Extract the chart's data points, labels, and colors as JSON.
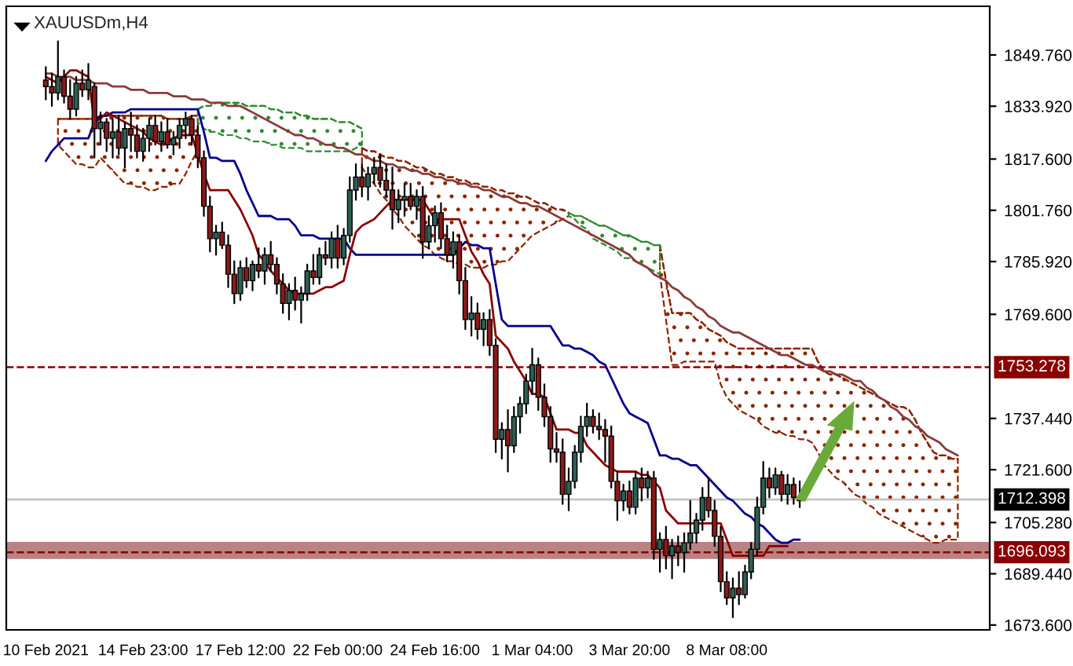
{
  "chart_data": {
    "type": "candlestick",
    "title": "XAUUSDm,H4",
    "categories": [
      "10 Feb 2021",
      null,
      null,
      null,
      null,
      null,
      null,
      null,
      null,
      null,
      null,
      null,
      null,
      null,
      null,
      null,
      "14 Feb 23:00",
      null,
      null,
      null,
      null,
      null,
      null,
      null,
      null,
      null,
      null,
      null,
      null,
      null,
      null,
      null,
      "17 Feb 12:00",
      null,
      null,
      null,
      null,
      null,
      null,
      null,
      null,
      null,
      null,
      null,
      null,
      null,
      null,
      null,
      "22 Feb 00:00",
      null,
      null,
      null,
      null,
      null,
      null,
      null,
      null,
      null,
      null,
      null,
      null,
      null,
      null,
      null,
      "24 Feb 16:00",
      null,
      null,
      null,
      null,
      null,
      null,
      null,
      null,
      null,
      null,
      null,
      null,
      null,
      null,
      null,
      "1 Mar 04:00",
      null,
      null,
      null,
      null,
      null,
      null,
      null,
      null,
      null,
      null,
      null,
      null,
      null,
      null,
      null,
      "3 Mar 20:00",
      null,
      null,
      null,
      null,
      null,
      null,
      null,
      null,
      null,
      null,
      null,
      null,
      null,
      null,
      null,
      "8 Mar 08:00",
      null,
      null,
      null,
      null,
      null,
      null,
      null,
      null,
      null,
      null,
      null,
      null,
      null,
      null,
      null,
      null,
      null,
      null,
      null,
      null,
      null,
      null,
      null,
      null,
      null,
      null,
      null,
      null,
      null,
      null,
      null,
      null,
      null,
      null,
      null,
      null,
      null,
      null
    ],
    "ohlc": [
      [
        1842,
        1846,
        1836,
        1840
      ],
      [
        1840,
        1844,
        1834,
        1838
      ],
      [
        1838,
        1854,
        1836,
        1843
      ],
      [
        1843,
        1845,
        1835,
        1837
      ],
      [
        1837,
        1842,
        1830,
        1833
      ],
      [
        1833,
        1843,
        1831,
        1841
      ],
      [
        1841,
        1845,
        1837,
        1839
      ],
      [
        1839,
        1847,
        1836,
        1842
      ],
      [
        1840,
        1841,
        1818,
        1827
      ],
      [
        1827,
        1832,
        1822,
        1829
      ],
      [
        1829,
        1830,
        1820,
        1824
      ],
      [
        1824,
        1830,
        1818,
        1826
      ],
      [
        1826,
        1831,
        1819,
        1821
      ],
      [
        1821,
        1829,
        1815,
        1827
      ],
      [
        1827,
        1832,
        1820,
        1825
      ],
      [
        1825,
        1828,
        1818,
        1820
      ],
      [
        1820,
        1827,
        1817,
        1824
      ],
      [
        1824,
        1830,
        1820,
        1828
      ],
      [
        1828,
        1831,
        1822,
        1823
      ],
      [
        1823,
        1829,
        1820,
        1826
      ],
      [
        1826,
        1830,
        1821,
        1822
      ],
      [
        1822,
        1826,
        1819,
        1824
      ],
      [
        1824,
        1830,
        1821,
        1828
      ],
      [
        1828,
        1832,
        1824,
        1830
      ],
      [
        1830,
        1831,
        1822,
        1825
      ],
      [
        1825,
        1828,
        1815,
        1818
      ],
      [
        1818,
        1820,
        1800,
        1803
      ],
      [
        1803,
        1806,
        1789,
        1793
      ],
      [
        1793,
        1797,
        1788,
        1795
      ],
      [
        1795,
        1798,
        1790,
        1791
      ],
      [
        1791,
        1794,
        1778,
        1782
      ],
      [
        1782,
        1786,
        1773,
        1776
      ],
      [
        1776,
        1786,
        1774,
        1784
      ],
      [
        1784,
        1787,
        1778,
        1780
      ],
      [
        1780,
        1786,
        1777,
        1785
      ],
      [
        1785,
        1790,
        1781,
        1783
      ],
      [
        1783,
        1790,
        1779,
        1788
      ],
      [
        1788,
        1792,
        1783,
        1785
      ],
      [
        1785,
        1787,
        1776,
        1779
      ],
      [
        1779,
        1782,
        1770,
        1773
      ],
      [
        1773,
        1779,
        1768,
        1777
      ],
      [
        1777,
        1781,
        1771,
        1774
      ],
      [
        1774,
        1778,
        1767,
        1776
      ],
      [
        1776,
        1785,
        1774,
        1783
      ],
      [
        1783,
        1788,
        1779,
        1781
      ],
      [
        1781,
        1790,
        1779,
        1788
      ],
      [
        1788,
        1792,
        1785,
        1787
      ],
      [
        1787,
        1795,
        1784,
        1793
      ],
      [
        1793,
        1797,
        1784,
        1787
      ],
      [
        1787,
        1796,
        1785,
        1794
      ],
      [
        1794,
        1812,
        1792,
        1808
      ],
      [
        1808,
        1816,
        1805,
        1812
      ],
      [
        1812,
        1816,
        1806,
        1809
      ],
      [
        1809,
        1815,
        1805,
        1813
      ],
      [
        1813,
        1818,
        1810,
        1815
      ],
      [
        1815,
        1819,
        1809,
        1811
      ],
      [
        1811,
        1816,
        1806,
        1808
      ],
      [
        1808,
        1815,
        1796,
        1802
      ],
      [
        1802,
        1808,
        1798,
        1805
      ],
      [
        1805,
        1810,
        1800,
        1806
      ],
      [
        1806,
        1810,
        1802,
        1803
      ],
      [
        1803,
        1808,
        1799,
        1806
      ],
      [
        1806,
        1809,
        1787,
        1792
      ],
      [
        1792,
        1800,
        1790,
        1797
      ],
      [
        1797,
        1803,
        1792,
        1801
      ],
      [
        1801,
        1804,
        1790,
        1793
      ],
      [
        1793,
        1797,
        1786,
        1788
      ],
      [
        1788,
        1795,
        1784,
        1792
      ],
      [
        1792,
        1794,
        1776,
        1780
      ],
      [
        1780,
        1784,
        1765,
        1768
      ],
      [
        1768,
        1775,
        1763,
        1770
      ],
      [
        1770,
        1773,
        1762,
        1765
      ],
      [
        1765,
        1770,
        1760,
        1768
      ],
      [
        1768,
        1771,
        1757,
        1760
      ],
      [
        1760,
        1762,
        1727,
        1731
      ],
      [
        1731,
        1736,
        1725,
        1734
      ],
      [
        1734,
        1740,
        1721,
        1729
      ],
      [
        1729,
        1741,
        1727,
        1738
      ],
      [
        1738,
        1744,
        1733,
        1742
      ],
      [
        1742,
        1751,
        1739,
        1749
      ],
      [
        1749,
        1759,
        1745,
        1754
      ],
      [
        1754,
        1756,
        1740,
        1744
      ],
      [
        1744,
        1748,
        1735,
        1738
      ],
      [
        1738,
        1741,
        1724,
        1728
      ],
      [
        1728,
        1733,
        1724,
        1727
      ],
      [
        1727,
        1731,
        1711,
        1714
      ],
      [
        1714,
        1722,
        1709,
        1718
      ],
      [
        1718,
        1729,
        1716,
        1727
      ],
      [
        1727,
        1738,
        1724,
        1735
      ],
      [
        1735,
        1742,
        1732,
        1738
      ],
      [
        1738,
        1740,
        1733,
        1735
      ],
      [
        1735,
        1739,
        1731,
        1734
      ],
      [
        1734,
        1737,
        1724,
        1732
      ],
      [
        1732,
        1735,
        1716,
        1718
      ],
      [
        1718,
        1721,
        1706,
        1712
      ],
      [
        1712,
        1717,
        1709,
        1715
      ],
      [
        1715,
        1718,
        1708,
        1710
      ],
      [
        1710,
        1721,
        1708,
        1719
      ],
      [
        1719,
        1722,
        1712,
        1716
      ],
      [
        1716,
        1721,
        1713,
        1719
      ],
      [
        1719,
        1721,
        1694,
        1697
      ],
      [
        1697,
        1702,
        1690,
        1700
      ],
      [
        1700,
        1704,
        1691,
        1695
      ],
      [
        1695,
        1700,
        1688,
        1698
      ],
      [
        1698,
        1701,
        1692,
        1696
      ],
      [
        1696,
        1702,
        1690,
        1699
      ],
      [
        1699,
        1712,
        1697,
        1702
      ],
      [
        1702,
        1708,
        1699,
        1706
      ],
      [
        1706,
        1716,
        1703,
        1713
      ],
      [
        1713,
        1719,
        1707,
        1709
      ],
      [
        1709,
        1712,
        1698,
        1701
      ],
      [
        1701,
        1704,
        1684,
        1687
      ],
      [
        1687,
        1690,
        1680,
        1682
      ],
      [
        1682,
        1688,
        1676,
        1685
      ],
      [
        1685,
        1690,
        1680,
        1683
      ],
      [
        1683,
        1692,
        1682,
        1690
      ],
      [
        1690,
        1699,
        1688,
        1697
      ],
      [
        1697,
        1713,
        1695,
        1710
      ],
      [
        1710,
        1724,
        1708,
        1719
      ],
      [
        1719,
        1722,
        1713,
        1716
      ],
      [
        1716,
        1722,
        1714,
        1720
      ],
      [
        1720,
        1721,
        1712,
        1714
      ],
      [
        1714,
        1720,
        1711,
        1717
      ],
      [
        1717,
        1719,
        1711,
        1713
      ],
      [
        1713,
        1718,
        1710,
        1712
      ],
      null,
      null,
      null,
      null,
      null,
      null,
      null,
      null,
      null,
      null,
      null,
      null,
      null,
      null,
      null,
      null,
      null,
      null,
      null,
      null,
      null,
      null,
      null,
      null,
      null,
      null
    ],
    "colors": [
      "#8b1a1a",
      "#8b1a1a",
      "#2f5f55",
      "#8b1a1a",
      "#8b1a1a",
      "#2f5f55",
      "#8b1a1a",
      "#2f5f55",
      "#8b1a1a",
      "#2f5f55",
      "#8b1a1a",
      "#2f5f55",
      "#8b1a1a",
      "#2f5f55",
      "#8b1a1a",
      "#8b1a1a",
      "#2f5f55",
      "#2f5f55",
      "#8b1a1a",
      "#2f5f55",
      "#8b1a1a",
      "#2f5f55",
      "#2f5f55",
      "#2f5f55",
      "#8b1a1a",
      "#8b1a1a",
      "#8b1a1a",
      "#8b1a1a",
      "#2f5f55",
      "#8b1a1a",
      "#8b1a1a",
      "#8b1a1a",
      "#2f5f55",
      "#8b1a1a",
      "#2f5f55",
      "#8b1a1a",
      "#2f5f55",
      "#8b1a1a",
      "#8b1a1a",
      "#8b1a1a",
      "#2f5f55",
      "#8b1a1a",
      "#2f5f55",
      "#2f5f55",
      "#8b1a1a",
      "#2f5f55",
      "#8b1a1a",
      "#2f5f55",
      "#8b1a1a",
      "#2f5f55",
      "#2f5f55",
      "#2f5f55",
      "#8b1a1a",
      "#2f5f55",
      "#2f5f55",
      "#8b1a1a",
      "#8b1a1a",
      "#8b1a1a",
      "#2f5f55",
      "#2f5f55",
      "#8b1a1a",
      "#2f5f55",
      "#8b1a1a",
      "#2f5f55",
      "#2f5f55",
      "#8b1a1a",
      "#8b1a1a",
      "#2f5f55",
      "#8b1a1a",
      "#8b1a1a",
      "#2f5f55",
      "#8b1a1a",
      "#2f5f55",
      "#8b1a1a",
      "#8b1a1a",
      "#2f5f55",
      "#8b1a1a",
      "#2f5f55",
      "#2f5f55",
      "#2f5f55",
      "#2f5f55",
      "#8b1a1a",
      "#8b1a1a",
      "#8b1a1a",
      "#8b1a1a",
      "#8b1a1a",
      "#2f5f55",
      "#2f5f55",
      "#2f5f55",
      "#2f5f55",
      "#8b1a1a",
      "#8b1a1a",
      "#8b1a1a",
      "#8b1a1a",
      "#8b1a1a",
      "#2f5f55",
      "#8b1a1a",
      "#2f5f55",
      "#8b1a1a",
      "#2f5f55",
      "#8b1a1a",
      "#2f5f55",
      "#8b1a1a",
      "#2f5f55",
      "#8b1a1a",
      "#2f5f55",
      "#2f5f55",
      "#2f5f55",
      "#2f5f55",
      "#8b1a1a",
      "#8b1a1a",
      "#8b1a1a",
      "#8b1a1a",
      "#2f5f55",
      "#8b1a1a",
      "#2f5f55",
      "#2f5f55",
      "#2f5f55",
      "#2f5f55",
      "#8b1a1a",
      "#2f5f55",
      "#8b1a1a",
      "#2f5f55",
      "#8b1a1a",
      "#8b1a1a",
      null,
      null,
      null,
      null,
      null,
      null,
      null,
      null,
      null,
      null,
      null,
      null,
      null,
      null,
      null,
      null,
      null,
      null,
      null,
      null,
      null,
      null,
      null,
      null,
      null,
      null
    ],
    "series": [
      {
        "type": "line",
        "color": "#8b2500",
        "line_style": "dashed",
        "values": [
          null,
          null,
          1830,
          1830,
          1830,
          1830,
          1830,
          1830,
          1830,
          1831,
          1831,
          1831,
          1831,
          1831,
          1831,
          1831,
          1831,
          1831,
          1831,
          1831,
          1830,
          1830,
          1830,
          1830,
          1831,
          1831,
          null,
          null,
          null,
          null,
          null,
          null,
          null,
          null,
          null,
          null,
          null,
          null,
          null,
          null,
          null,
          null,
          null,
          null,
          null,
          null,
          null,
          null,
          null,
          null,
          null,
          null,
          1821,
          1820,
          1820,
          1819,
          1818,
          1818,
          1817,
          1817,
          1816,
          1815,
          1815,
          1814,
          1813,
          1813,
          1812,
          1812,
          1811,
          1811,
          1810,
          1810,
          1809,
          1809,
          1808,
          1808,
          1807,
          1807,
          1806,
          1806,
          1805,
          1804,
          1804,
          1803,
          1802,
          1802,
          1801,
          null,
          null,
          null,
          null,
          null,
          null,
          null,
          null,
          null,
          null,
          null,
          null,
          null,
          null,
          1791,
          1780,
          1770,
          1770,
          1770,
          1770,
          1768,
          1767,
          1765,
          1764,
          1763,
          1761,
          1760,
          1759,
          1759,
          1759,
          1759,
          1759,
          1759,
          1759,
          1759,
          1759,
          1759,
          1759,
          1759,
          1759,
          1755,
          1752,
          1751,
          1751,
          1750,
          1749,
          1748,
          1747,
          1746,
          1745,
          1744,
          1743,
          1742,
          1741,
          1741,
          1740,
          1737,
          1733,
          1730,
          1727,
          1726,
          1726,
          1725,
          1725
        ],
        "upper": [
          null,
          null,
          1830,
          1830,
          1830,
          1830,
          1830,
          1830,
          1830,
          1831,
          1831,
          1831,
          1831,
          1831,
          1831,
          1831,
          1831,
          1831,
          1831,
          1831,
          1830,
          1830,
          1830,
          1830,
          1831,
          1831,
          null,
          null,
          null,
          null,
          null,
          null,
          null,
          null,
          null,
          null,
          null,
          null,
          null,
          null,
          null,
          null,
          null,
          null,
          null,
          null,
          null,
          null,
          null,
          null,
          null,
          null,
          1821,
          1820,
          1820,
          1819,
          1818,
          1818,
          1817,
          1817,
          1816,
          1815,
          1815,
          1814,
          1813,
          1813,
          1812,
          1812,
          1811,
          1811,
          1810,
          1810,
          1809,
          1809,
          1808,
          1808,
          1807,
          1807,
          1806,
          1806,
          1805,
          1804,
          1804,
          1803,
          1802,
          1802,
          1801,
          null,
          null,
          null,
          null,
          null,
          null,
          null,
          null,
          null,
          null,
          null,
          null,
          null,
          null,
          1791,
          1780,
          1770,
          1770,
          1770,
          1770,
          1768,
          1767,
          1765,
          1764,
          1763,
          1761,
          1760,
          1759,
          1759,
          1759,
          1759,
          1759,
          1759,
          1759,
          1759,
          1759,
          1759,
          1759,
          1759,
          1759,
          1755,
          1752,
          1751,
          1751,
          1750,
          1749,
          1748,
          1747,
          1746,
          1745,
          1744,
          1743,
          1742,
          1741,
          1741,
          1740,
          1737,
          1733,
          1730,
          1727,
          1726,
          1726,
          1725,
          1725
        ],
        "lower": [
          null,
          null,
          1822,
          1820,
          1818,
          1816,
          1816,
          1815,
          1815,
          1818,
          1816,
          1814,
          1812,
          1810,
          1810,
          1809,
          1809,
          1808,
          1808,
          1809,
          1809,
          1810,
          1810,
          1813,
          1817,
          1820,
          null,
          null,
          null,
          null,
          null,
          null,
          null,
          null,
          null,
          null,
          null,
          null,
          null,
          null,
          null,
          null,
          null,
          null,
          null,
          null,
          null,
          null,
          null,
          null,
          null,
          null,
          1815,
          1812,
          1810,
          1807,
          1805,
          1802,
          1800,
          1797,
          1795,
          1793,
          1791,
          1790,
          1788,
          1787,
          1786,
          1786,
          1785,
          1785,
          1784,
          1784,
          1784,
          1785,
          1785,
          1786,
          1786,
          1788,
          1790,
          1792,
          1794,
          1795,
          1796,
          1797,
          1798,
          1799,
          1800,
          null,
          null,
          null,
          null,
          null,
          null,
          null,
          null,
          null,
          null,
          null,
          null,
          null,
          null,
          1782,
          1768,
          1754,
          1754,
          1755,
          1755,
          1755,
          1755,
          1755,
          1755,
          1748,
          1744,
          1742,
          1740,
          1739,
          1738,
          1737,
          1735,
          1734,
          1733,
          1733,
          1732,
          1732,
          1731,
          1731,
          1730,
          1727,
          1723,
          1721,
          1719,
          1718,
          1716,
          1714,
          1713,
          1711,
          1710,
          1708,
          1707,
          1706,
          1705,
          1704,
          1703,
          1702,
          1701,
          1700,
          1699,
          1699,
          1700,
          1700,
          1700
        ]
      },
      {
        "type": "line",
        "color": "#2e8b2e",
        "line_style": "dashed",
        "values": [
          null,
          null,
          null,
          null,
          null,
          null,
          null,
          null,
          null,
          null,
          null,
          null,
          null,
          null,
          null,
          null,
          null,
          null,
          null,
          null,
          null,
          null,
          null,
          null,
          null,
          1833,
          1834,
          1834,
          1835,
          1835,
          1835,
          1835,
          1835,
          1834,
          1834,
          1834,
          1834,
          1833,
          1833,
          1832,
          1832,
          1832,
          1831,
          1831,
          1830,
          1830,
          1830,
          1830,
          1829,
          1829,
          1829,
          1828,
          1827,
          null,
          null,
          null,
          null,
          null,
          null,
          null,
          null,
          null,
          null,
          null,
          null,
          null,
          null,
          null,
          null,
          null,
          null,
          null,
          null,
          null,
          null,
          null,
          null,
          null,
          null,
          null,
          null,
          null,
          null,
          null,
          null,
          null,
          1801,
          1800,
          1800,
          1799,
          1798,
          1797,
          1797,
          1796,
          1795,
          1794,
          1794,
          1793,
          1792,
          1792,
          1791,
          1791,
          null,
          null,
          null,
          null,
          null,
          null,
          null,
          null,
          null,
          null,
          null,
          null,
          null,
          null,
          null,
          null,
          null,
          null,
          null,
          null,
          null,
          null,
          null,
          null,
          null,
          null,
          null,
          null,
          null,
          null,
          null,
          null,
          null,
          null,
          null,
          null,
          null,
          null,
          null,
          null,
          null,
          null,
          null,
          null,
          null,
          null,
          null,
          null,
          null
        ],
        "upper": [
          null,
          null,
          null,
          null,
          null,
          null,
          null,
          null,
          null,
          null,
          null,
          null,
          null,
          null,
          null,
          null,
          null,
          null,
          null,
          null,
          null,
          null,
          null,
          null,
          null,
          1833,
          1834,
          1834,
          1835,
          1835,
          1835,
          1835,
          1835,
          1834,
          1834,
          1834,
          1834,
          1833,
          1833,
          1832,
          1832,
          1832,
          1831,
          1831,
          1830,
          1830,
          1830,
          1830,
          1829,
          1829,
          1829,
          1828,
          1827,
          null,
          null,
          null,
          null,
          null,
          null,
          null,
          null,
          null,
          null,
          null,
          null,
          null,
          null,
          null,
          null,
          null,
          null,
          null,
          null,
          null,
          null,
          null,
          null,
          null,
          null,
          null,
          null,
          null,
          null,
          null,
          null,
          null,
          1801,
          1800,
          1800,
          1799,
          1798,
          1797,
          1797,
          1796,
          1795,
          1794,
          1794,
          1793,
          1792,
          1792,
          1791,
          1791,
          null,
          null,
          null,
          null,
          null,
          null,
          null,
          null,
          null,
          null,
          null,
          null,
          null,
          null,
          null,
          null,
          null,
          null,
          null,
          null,
          null,
          null,
          null,
          null,
          null,
          null,
          null,
          null,
          null,
          null,
          null,
          null,
          null,
          null,
          null,
          null,
          null,
          null,
          null,
          null,
          null,
          null,
          null,
          null,
          null,
          null,
          null,
          null,
          null
        ],
        "lower": [
          null,
          null,
          null,
          null,
          null,
          null,
          null,
          null,
          null,
          null,
          null,
          null,
          null,
          null,
          null,
          null,
          null,
          null,
          null,
          null,
          null,
          null,
          null,
          null,
          null,
          1829,
          1827,
          1826,
          1826,
          1825,
          1825,
          1825,
          1824,
          1824,
          1823,
          1823,
          1823,
          1822,
          1822,
          1821,
          1821,
          1821,
          1821,
          1820,
          1820,
          1820,
          1820,
          1820,
          1820,
          1820,
          1820,
          1821,
          1822,
          null,
          null,
          null,
          null,
          null,
          null,
          null,
          null,
          null,
          null,
          null,
          null,
          null,
          null,
          null,
          null,
          null,
          null,
          null,
          null,
          null,
          null,
          null,
          null,
          null,
          null,
          null,
          null,
          null,
          null,
          null,
          null,
          null,
          1800,
          1799,
          1797,
          1796,
          1793,
          1792,
          1791,
          1790,
          1789,
          1787,
          1787,
          1786,
          1785,
          1784,
          1783,
          1782,
          null,
          null,
          null,
          null,
          null,
          null,
          null,
          null,
          null,
          null,
          null,
          null,
          null,
          null,
          null,
          null,
          null,
          null,
          null,
          null,
          null,
          null,
          null,
          null,
          null,
          null,
          null,
          null,
          null,
          null,
          null,
          null,
          null,
          null,
          null,
          null,
          null,
          null,
          null,
          null,
          null,
          null,
          null,
          null,
          null,
          null,
          null,
          null,
          null
        ]
      },
      {
        "type": "line",
        "color": "#8b3a3a",
        "values": [
          1844,
          1844,
          1843,
          1843,
          1843,
          1842,
          1842,
          1842,
          1841,
          1841,
          1841,
          1840,
          1840,
          1840,
          1839,
          1839,
          1839,
          1838,
          1838,
          1838,
          1838,
          1837,
          1837,
          1837,
          1836,
          1836,
          1836,
          1835,
          1835,
          1835,
          1834,
          1834,
          1834,
          1833,
          1832,
          1831,
          1830,
          1829,
          1828,
          1827,
          1826,
          1825,
          1825,
          1824,
          1824,
          1823,
          1822,
          1822,
          1821,
          1821,
          1820,
          1819,
          1819,
          1818,
          1817,
          1817,
          1816,
          1816,
          1815,
          1815,
          1814,
          1814,
          1813,
          1813,
          1812,
          1812,
          1811,
          1811,
          1810,
          1810,
          1809,
          1809,
          1808,
          1808,
          1807,
          1806,
          1806,
          1805,
          1804,
          1804,
          1803,
          1803,
          1802,
          1801,
          1800,
          1799,
          1798,
          1797,
          1796,
          1795,
          1794,
          1793,
          1792,
          1791,
          1790,
          1789,
          1788,
          1786,
          1785,
          1784,
          1782,
          1781,
          1780,
          1778,
          1777,
          1775,
          1774,
          1772,
          1771,
          1769,
          1768,
          1766,
          1765,
          1764,
          1764,
          1763,
          1762,
          1761,
          1760,
          1759,
          1758,
          1757,
          1757,
          1756,
          1755,
          1754,
          1754,
          1753,
          1752,
          1752,
          1751,
          1751,
          1750,
          1749,
          1749,
          1747,
          1746,
          1744,
          1743,
          1741,
          1740,
          1738,
          1737,
          1735,
          1734,
          1732,
          1731,
          1730,
          1728,
          1727,
          1726
        ]
      },
      {
        "type": "line",
        "color": "#00008b",
        "values": [
          1817,
          1820,
          1822,
          1824,
          1824,
          1824,
          1824,
          1824,
          1829,
          1831,
          1831,
          1832,
          1832,
          1832,
          1833,
          1833,
          1833,
          1833,
          1833,
          1833,
          1833,
          1833,
          1833,
          1833,
          1833,
          1833,
          1826,
          1818,
          1818,
          1817,
          1817,
          1817,
          1813,
          1808,
          1804,
          1800,
          1800,
          1800,
          1799,
          1799,
          1799,
          1797,
          1794,
          1794,
          1794,
          1793,
          1793,
          1793,
          1793,
          1793,
          1790,
          1788,
          1788,
          1788,
          1788,
          1788,
          1788,
          1788,
          1788,
          1788,
          1788,
          1788,
          1788,
          1788,
          1788,
          1788,
          1788,
          1788,
          1790,
          1792,
          1791,
          1791,
          1790,
          1790,
          1779,
          1768,
          1766,
          1766,
          1766,
          1766,
          1766,
          1766,
          1766,
          1766,
          1763,
          1760,
          1760,
          1759,
          1759,
          1758,
          1757,
          1755,
          1754,
          1750,
          1746,
          1742,
          1739,
          1738,
          1737,
          1736,
          1731,
          1726,
          1726,
          1725,
          1725,
          1724,
          1723,
          1723,
          1721,
          1719,
          1717,
          1715,
          1713,
          1712,
          1710,
          1708,
          1707,
          1705,
          1704,
          1702,
          1700,
          1699,
          1699,
          1700,
          1700,
          null,
          null,
          null,
          null,
          null,
          null,
          null,
          null,
          null,
          null,
          null,
          null,
          null,
          null,
          null,
          null,
          null,
          null,
          null,
          null,
          null,
          null,
          null,
          null,
          null,
          null
        ]
      },
      {
        "type": "line",
        "color": "#8b0000",
        "values": [
          1843,
          1842,
          1841,
          1843,
          1845,
          1845,
          1844,
          1843,
          1829,
          1830,
          1832,
          1831,
          1830,
          1829,
          1828,
          1827,
          1826,
          1824,
          1823,
          1822,
          1823,
          1824,
          1825,
          1825,
          1825,
          1819,
          1813,
          1808,
          1808,
          1808,
          1808,
          1805,
          1802,
          1798,
          1794,
          1788,
          1786,
          1783,
          1781,
          1779,
          1777,
          1776,
          1776,
          1776,
          1776,
          1777,
          1778,
          1778,
          1779,
          1780,
          1788,
          1795,
          1797,
          1798,
          1799,
          1801,
          1803,
          1805,
          1805,
          1805,
          1805,
          1805,
          1805,
          1802,
          1799,
          1799,
          1799,
          1799,
          1799,
          1794,
          1789,
          1786,
          1782,
          1779,
          1763,
          1761,
          1759,
          1755,
          1752,
          1749,
          1745,
          1745,
          1744,
          1739,
          1734,
          1734,
          1734,
          1733,
          1733,
          1729,
          1727,
          1725,
          1723,
          1722,
          1721,
          1721,
          1721,
          1721,
          1720,
          1720,
          1718,
          1716,
          1709,
          1707,
          1705,
          1705,
          1705,
          1705,
          1705,
          1705,
          1705,
          1705,
          1700,
          1695,
          1695,
          1695,
          1695,
          1695,
          1695,
          1698,
          1698,
          1698,
          1698,
          null,
          null,
          null,
          null,
          null,
          null,
          null,
          null,
          null,
          null,
          null,
          null,
          null,
          null,
          null,
          null,
          null,
          null,
          null,
          null,
          null,
          null,
          null,
          null,
          null,
          null,
          null,
          null
        ]
      }
    ],
    "ylim": [
      1672.1,
      1864.8
    ],
    "yticks": [
      {
        "value": 1673.6,
        "label": "1673.600"
      },
      {
        "value": 1689.44,
        "label": "1689.440"
      },
      {
        "value": 1705.28,
        "label": "1705.280"
      },
      {
        "value": 1721.6,
        "label": "1721.600"
      },
      {
        "value": 1737.44,
        "label": "1737.440"
      },
      {
        "value": 1769.6,
        "label": "1769.600"
      },
      {
        "value": 1785.92,
        "label": "1785.920"
      },
      {
        "value": 1801.76,
        "label": "1801.760"
      },
      {
        "value": 1817.6,
        "label": "1817.600"
      },
      {
        "value": 1833.92,
        "label": "1833.920"
      },
      {
        "value": 1849.76,
        "label": "1849.760"
      }
    ],
    "ref_lines": [
      {
        "axis": "y",
        "value": 1753.278,
        "label": "1753.278",
        "color": "#8b0000",
        "line_style": "dashed"
      },
      {
        "axis": "y",
        "value": 1696.093,
        "label": "1696.093",
        "color": "#8b0000",
        "line_style": "dashed"
      },
      {
        "axis": "y",
        "value": 1712.398,
        "label": "1712.398",
        "color": "#c0c0c0",
        "line_style": "solid"
      }
    ],
    "bands": [
      {
        "axis": "y",
        "from": 1694.0,
        "to": 1699.3,
        "color": "#b98383"
      }
    ]
  }
}
